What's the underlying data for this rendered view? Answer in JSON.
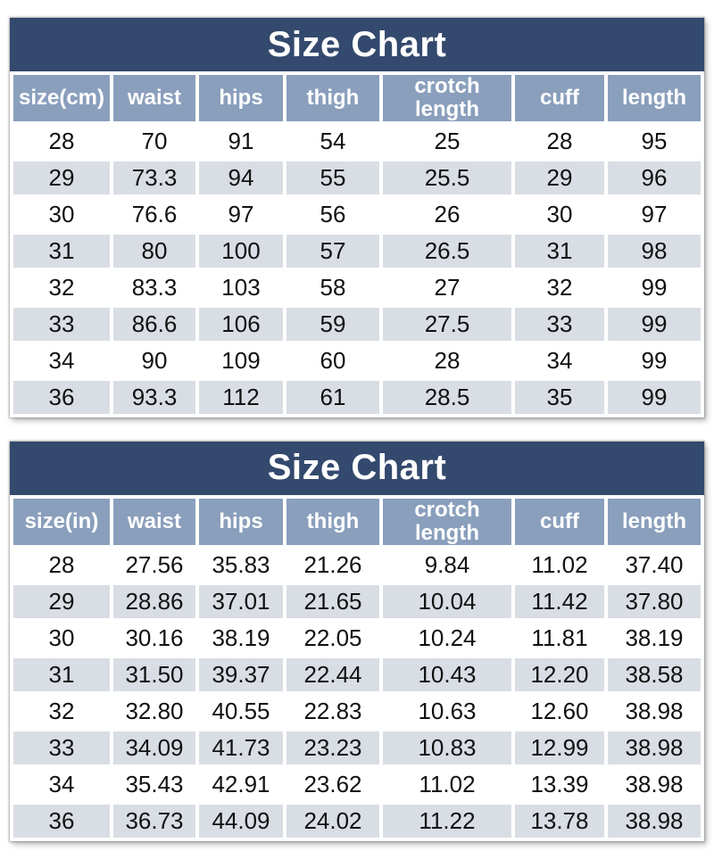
{
  "colors": {
    "title_bg": "#33496d",
    "header_bg": "#8a9fbc",
    "row_alt_bg": "#d9dde4",
    "row_bg": "#ffffff",
    "header_text": "#ffffff",
    "cell_text": "#111111",
    "page_bg": "#ffffff"
  },
  "chart_data": [
    {
      "type": "table",
      "title": "Size Chart",
      "unit": "cm",
      "columns": [
        "size(cm)",
        "waist",
        "hips",
        "thigh",
        "crotch length",
        "cuff",
        "length"
      ],
      "rows": [
        [
          "28",
          "70",
          "91",
          "54",
          "25",
          "28",
          "95"
        ],
        [
          "29",
          "73.3",
          "94",
          "55",
          "25.5",
          "29",
          "96"
        ],
        [
          "30",
          "76.6",
          "97",
          "56",
          "26",
          "30",
          "97"
        ],
        [
          "31",
          "80",
          "100",
          "57",
          "26.5",
          "31",
          "98"
        ],
        [
          "32",
          "83.3",
          "103",
          "58",
          "27",
          "32",
          "99"
        ],
        [
          "33",
          "86.6",
          "106",
          "59",
          "27.5",
          "33",
          "99"
        ],
        [
          "34",
          "90",
          "109",
          "60",
          "28",
          "34",
          "99"
        ],
        [
          "36",
          "93.3",
          "112",
          "61",
          "28.5",
          "35",
          "99"
        ]
      ]
    },
    {
      "type": "table",
      "title": "Size Chart",
      "unit": "in",
      "columns": [
        "size(in)",
        "waist",
        "hips",
        "thigh",
        "crotch length",
        "cuff",
        "length"
      ],
      "rows": [
        [
          "28",
          "27.56",
          "35.83",
          "21.26",
          "9.84",
          "11.02",
          "37.40"
        ],
        [
          "29",
          "28.86",
          "37.01",
          "21.65",
          "10.04",
          "11.42",
          "37.80"
        ],
        [
          "30",
          "30.16",
          "38.19",
          "22.05",
          "10.24",
          "11.81",
          "38.19"
        ],
        [
          "31",
          "31.50",
          "39.37",
          "22.44",
          "10.43",
          "12.20",
          "38.58"
        ],
        [
          "32",
          "32.80",
          "40.55",
          "22.83",
          "10.63",
          "12.60",
          "38.98"
        ],
        [
          "33",
          "34.09",
          "41.73",
          "23.23",
          "10.83",
          "12.99",
          "38.98"
        ],
        [
          "34",
          "35.43",
          "42.91",
          "23.62",
          "11.02",
          "13.39",
          "38.98"
        ],
        [
          "36",
          "36.73",
          "44.09",
          "24.02",
          "11.22",
          "13.78",
          "38.98"
        ]
      ]
    }
  ]
}
